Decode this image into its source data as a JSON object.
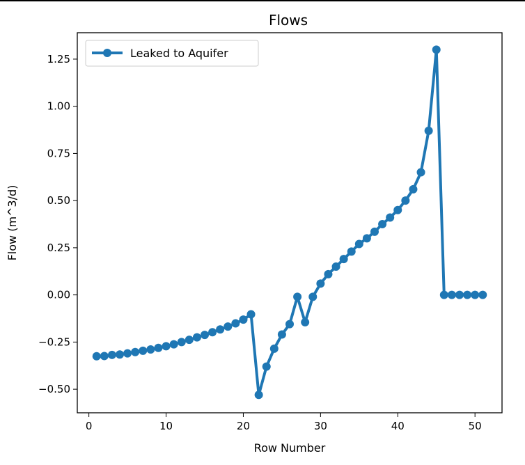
{
  "chart_data": {
    "type": "line",
    "title": "Flows",
    "xlabel": "Row Number",
    "ylabel": "Flow (m^3/d)",
    "xlim": [
      -1.5,
      53.5
    ],
    "ylim": [
      -0.625,
      1.39
    ],
    "xticks": [
      0,
      10,
      20,
      30,
      40,
      50
    ],
    "yticks": [
      -0.5,
      -0.25,
      0.0,
      0.25,
      0.5,
      0.75,
      1.0,
      1.25
    ],
    "ytick_labels": [
      "−0.50",
      "−0.25",
      "0.00",
      "0.25",
      "0.50",
      "0.75",
      "1.00",
      "1.25"
    ],
    "grid": false,
    "legend_position": "top-left",
    "series": [
      {
        "name": "Leaked to Aquifer",
        "color": "#1f77b4",
        "marker": "circle",
        "x": [
          1,
          2,
          3,
          4,
          5,
          6,
          7,
          8,
          9,
          10,
          11,
          12,
          13,
          14,
          15,
          16,
          17,
          18,
          19,
          20,
          21,
          22,
          23,
          24,
          25,
          26,
          27,
          28,
          29,
          30,
          31,
          32,
          33,
          34,
          35,
          36,
          37,
          38,
          39,
          40,
          41,
          42,
          43,
          44,
          45,
          46,
          47,
          48,
          49,
          50,
          51
        ],
        "y": [
          -0.325,
          -0.324,
          -0.318,
          -0.316,
          -0.31,
          -0.303,
          -0.296,
          -0.289,
          -0.281,
          -0.272,
          -0.262,
          -0.25,
          -0.238,
          -0.225,
          -0.212,
          -0.198,
          -0.183,
          -0.168,
          -0.151,
          -0.131,
          -0.103,
          -0.53,
          -0.38,
          -0.285,
          -0.21,
          -0.155,
          -0.01,
          -0.145,
          -0.01,
          0.06,
          0.11,
          0.15,
          0.19,
          0.23,
          0.27,
          0.3,
          0.335,
          0.375,
          0.41,
          0.45,
          0.5,
          0.56,
          0.65,
          0.87,
          1.3,
          0.0,
          0.0,
          0.0,
          0.0,
          0.0,
          0.0
        ]
      }
    ]
  }
}
